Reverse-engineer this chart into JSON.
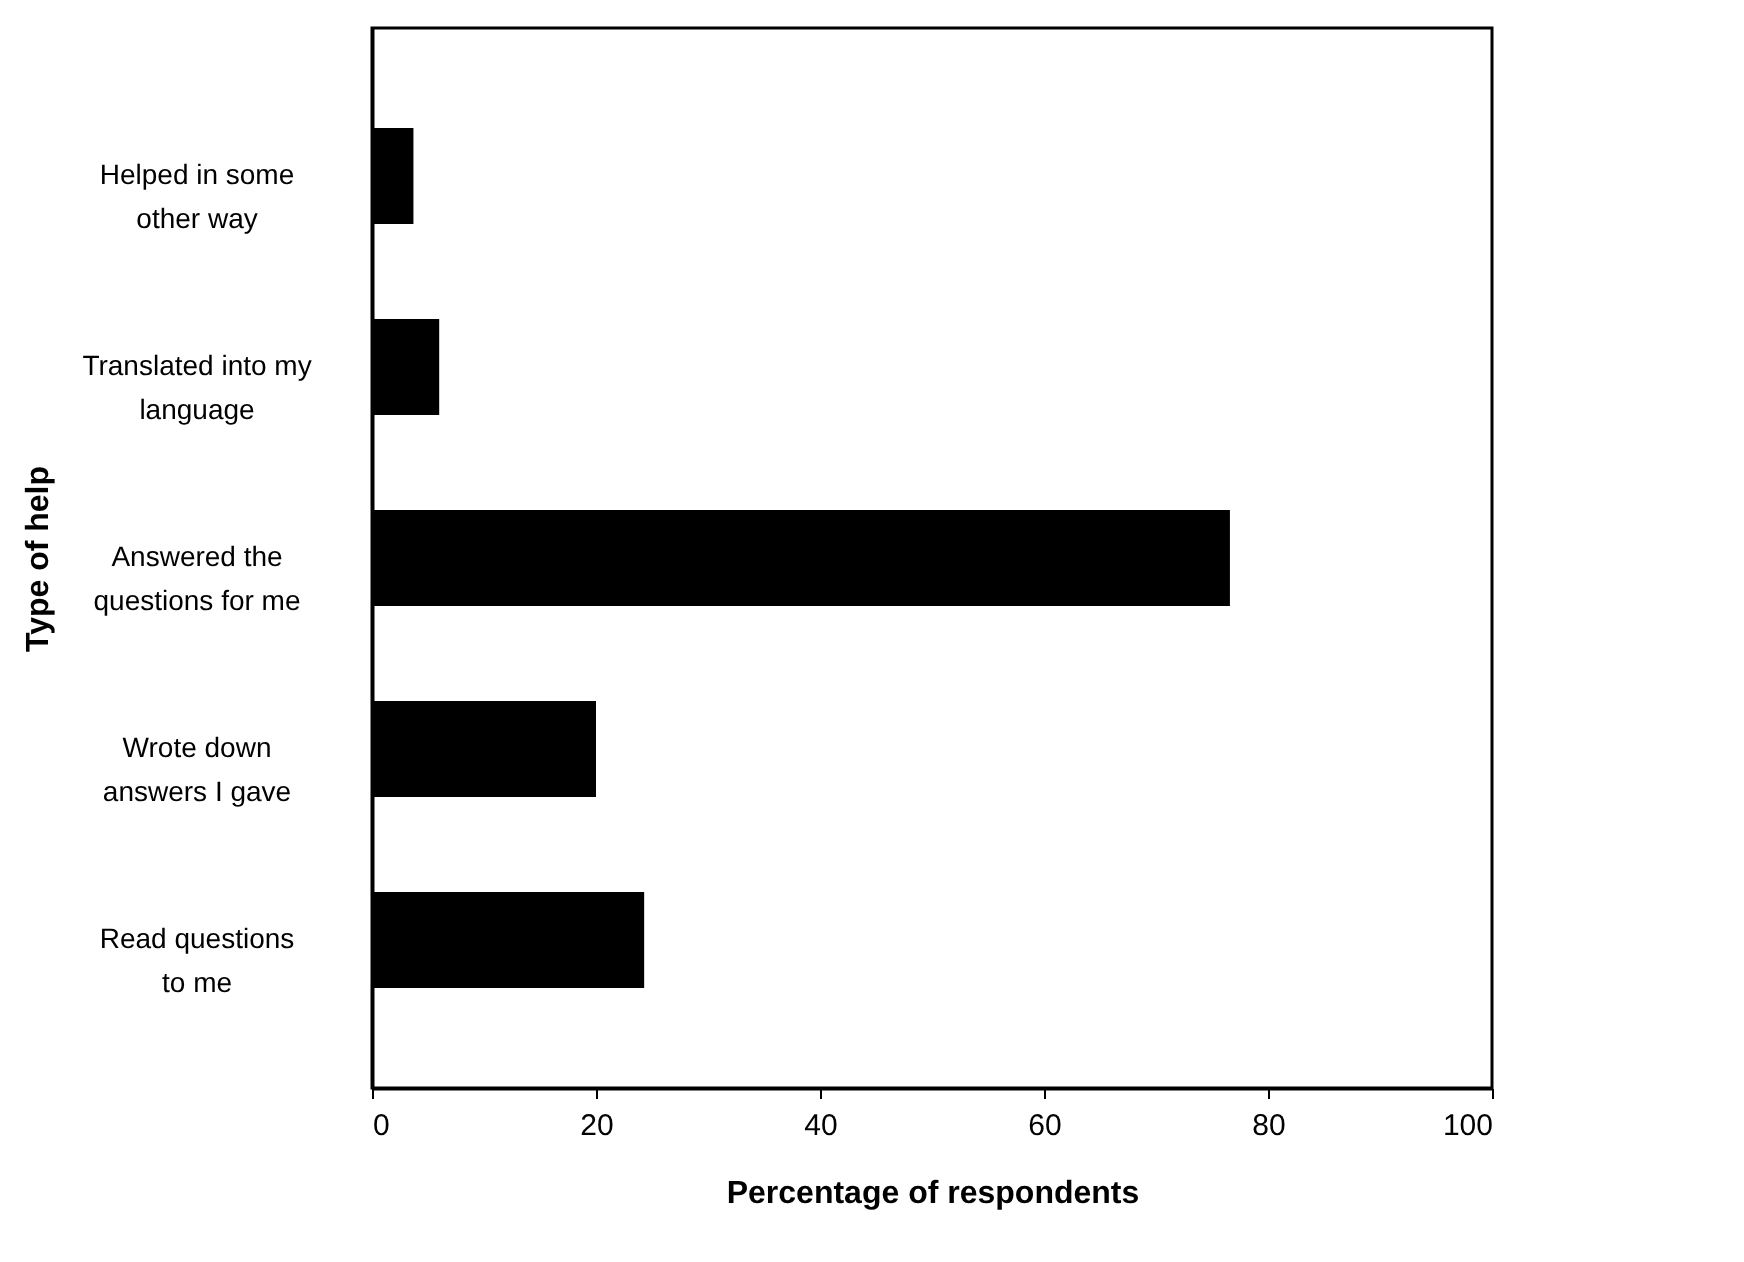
{
  "chart_data": {
    "type": "bar",
    "orientation": "horizontal",
    "categories": [
      "Helped in some\nother way",
      "Translated into my\nlanguage",
      "Answered the\nquestions for me",
      "Wrote down\nanswers I gave",
      "Read questions\nto me"
    ],
    "values": [
      3.7,
      6,
      76.6,
      20,
      24.3
    ],
    "color": "#000000",
    "xlabel": "Percentage of respondents",
    "ylabel": "Type of help",
    "xlim": [
      0,
      100
    ],
    "xticks": [
      0,
      20,
      40,
      60,
      80,
      100
    ],
    "grid": false
  }
}
